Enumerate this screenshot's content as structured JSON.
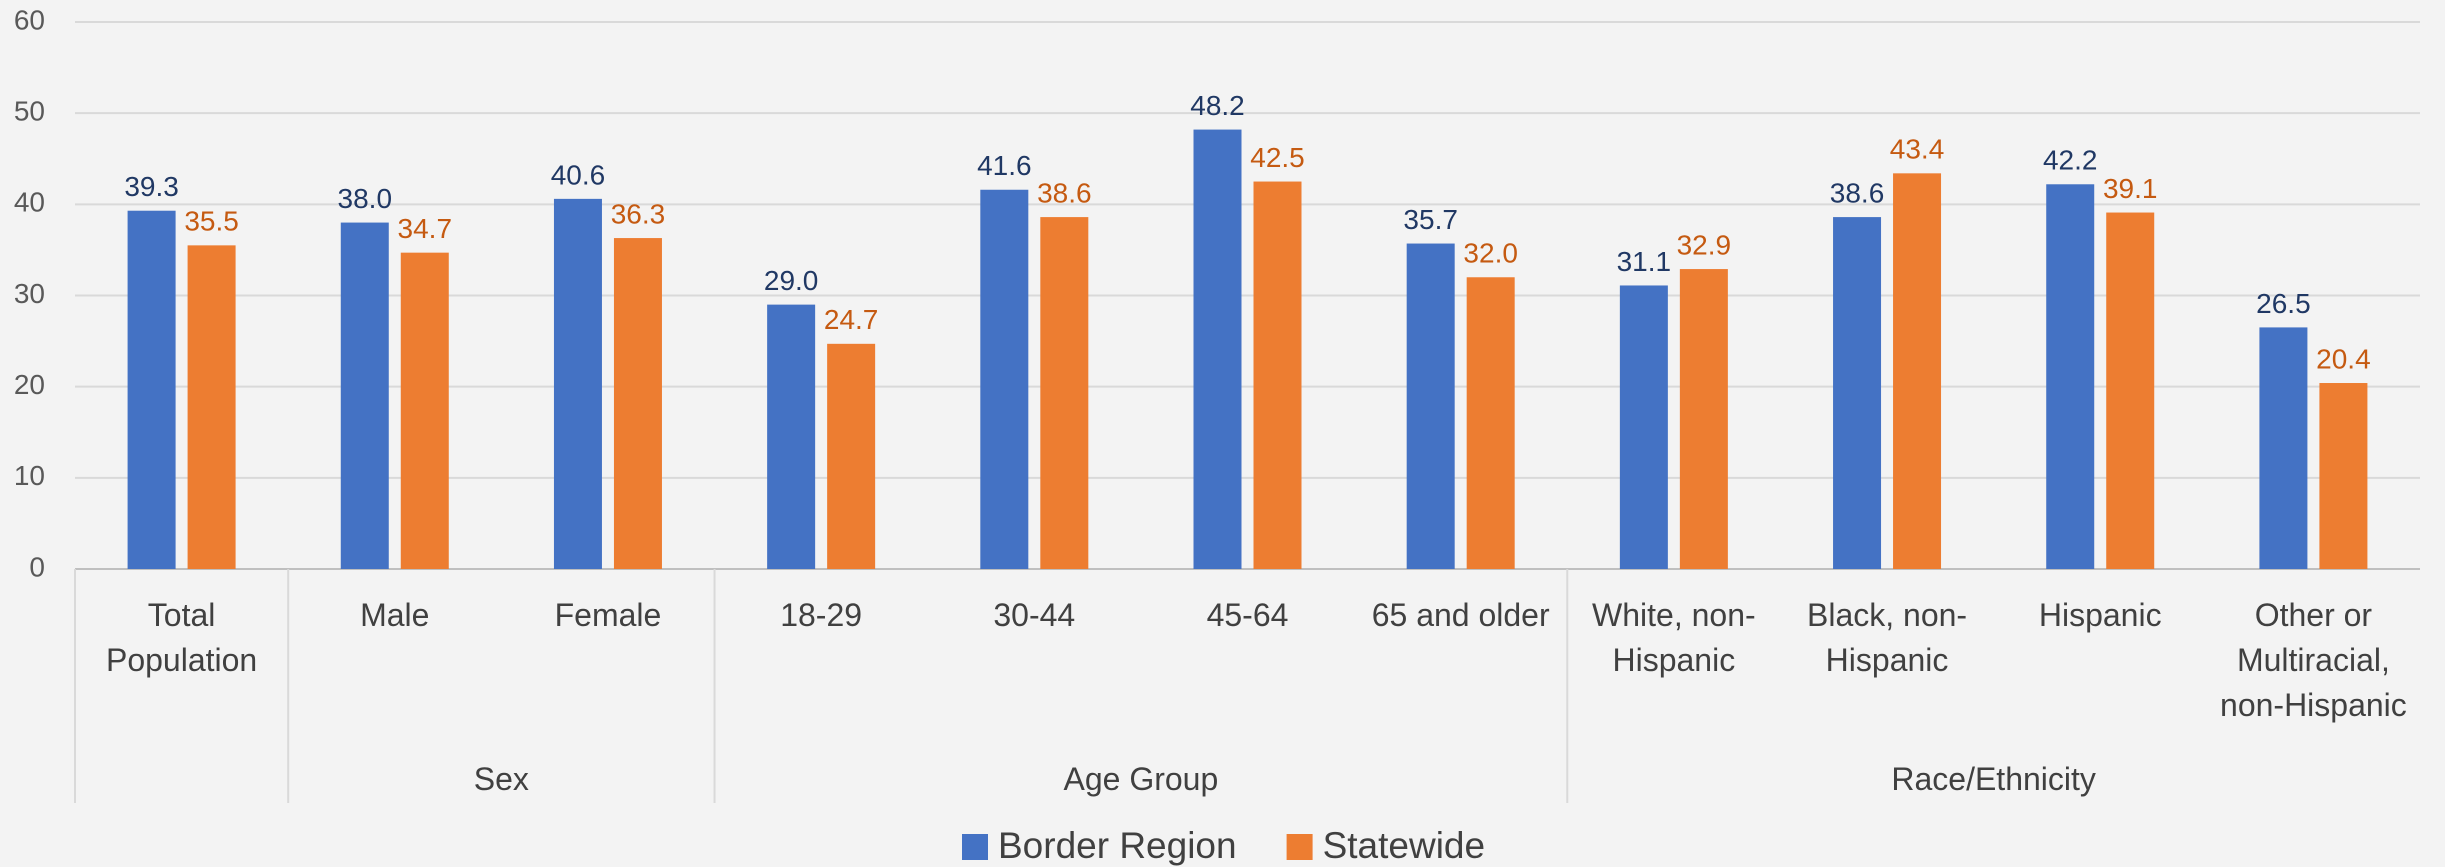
{
  "chart_data": {
    "type": "bar",
    "categories": [
      "Total Population",
      "Male",
      "Female",
      "18-29",
      "30-44",
      "45-64",
      "65 and older",
      "White, non-Hispanic",
      "Black, non-Hispanic",
      "Hispanic",
      "Other or Multiracial, non-Hispanic"
    ],
    "category_groups": [
      null,
      "Sex",
      "Sex",
      "Age Group",
      "Age Group",
      "Age Group",
      "Age Group",
      "Race/Ethnicity",
      "Race/Ethnicity",
      "Race/Ethnicity",
      "Race/Ethnicity"
    ],
    "series": [
      {
        "name": "Border Region",
        "color": "#4472c4",
        "label_color": "#203864",
        "values": [
          39.3,
          38.0,
          40.6,
          29.0,
          41.6,
          48.2,
          35.7,
          31.1,
          38.6,
          42.2,
          26.5
        ],
        "value_labels": [
          "39.3",
          "38.0",
          "40.6",
          "29.0",
          "41.6",
          "48.2",
          "35.7",
          "31.1",
          "38.6",
          "42.2",
          "26.5"
        ]
      },
      {
        "name": "Statewide",
        "color": "#ed7d31",
        "label_color": "#c55a11",
        "values": [
          35.5,
          34.7,
          36.3,
          24.7,
          38.6,
          42.5,
          32.0,
          32.9,
          43.4,
          39.1,
          20.4
        ],
        "value_labels": [
          "35.5",
          "34.7",
          "36.3",
          "24.7",
          "38.6",
          "42.5",
          "32.0",
          "32.9",
          "43.4",
          "39.1",
          "20.4"
        ]
      }
    ],
    "ylim": [
      0,
      60
    ],
    "yticks": [
      0,
      10,
      20,
      30,
      40,
      50,
      60
    ],
    "grid": true,
    "legend": "bottom"
  }
}
